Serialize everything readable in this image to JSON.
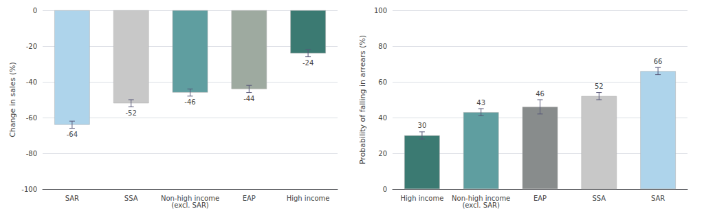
{
  "chart_data": [
    {
      "type": "bar",
      "categories": [
        "SAR",
        "SSA",
        "Non-high income\n(excl. SAR)",
        "EAP",
        "High income"
      ],
      "values": [
        -64,
        -52,
        -46,
        -44,
        -24
      ],
      "errors": [
        2,
        2,
        2,
        2,
        2
      ],
      "colors": [
        "#aed4eb",
        "#c8c8c8",
        "#5f9ea0",
        "#9eaaa0",
        "#3b7a72"
      ],
      "ylabel": "Change in sales (%)",
      "ylim": [
        -100,
        0
      ],
      "yticks": [
        0,
        -20,
        -40,
        -60,
        -80,
        -100
      ],
      "grid": true,
      "data_labels": true
    },
    {
      "type": "bar",
      "categories": [
        "High income",
        "Non-high income\n(excl. SAR)",
        "EAP",
        "SSA",
        "SAR"
      ],
      "values": [
        30,
        43,
        46,
        52,
        66
      ],
      "errors": [
        2,
        2,
        4,
        2,
        2
      ],
      "colors": [
        "#3b7a72",
        "#5f9ea0",
        "#888c8c",
        "#c8c8c8",
        "#aed4eb"
      ],
      "ylabel": "Probability of falling in arrears (%)",
      "ylim": [
        0,
        100
      ],
      "yticks": [
        0,
        20,
        40,
        60,
        80,
        100
      ],
      "grid": true,
      "data_labels": true
    }
  ]
}
